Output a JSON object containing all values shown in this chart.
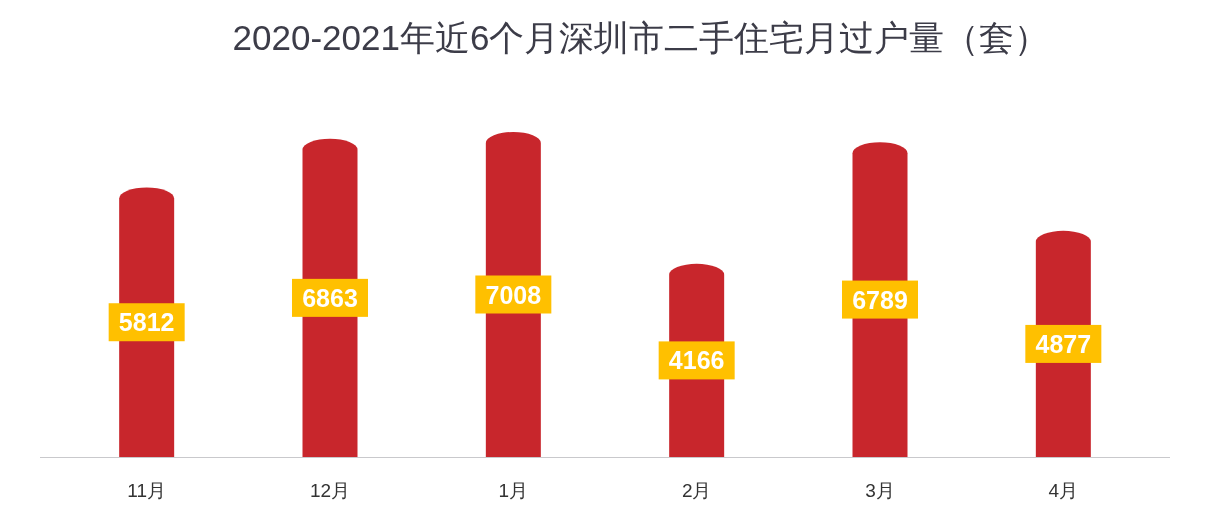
{
  "chart_data": {
    "type": "bar",
    "title": "2020-2021年近6个月深圳市二手住宅月过户量（套）",
    "categories": [
      "11月",
      "12月",
      "1月",
      "2月",
      "3月",
      "4月"
    ],
    "values": [
      5812,
      6863,
      7008,
      4166,
      6789,
      4877
    ],
    "color": "#c8262c",
    "data_labels": true
  }
}
